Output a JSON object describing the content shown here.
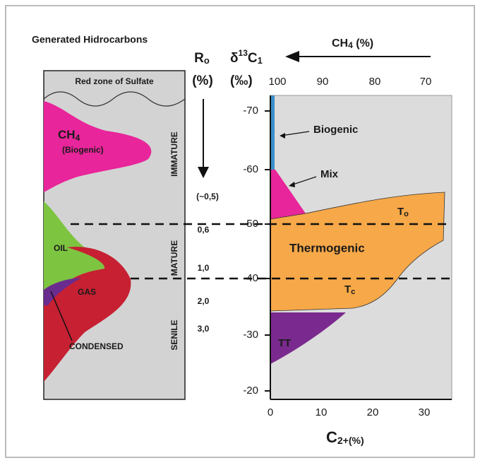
{
  "left_panel": {
    "title": "Generated Hidrocarbons",
    "top_zone": "Red zone of Sulfate",
    "ch4": {
      "formula": "CH",
      "subscript": "4"
    },
    "biogenic": "(Biogenic)",
    "oil": "OIL",
    "gas": "GAS",
    "condensed": "CONDENSED",
    "stages": [
      "IMMATURE",
      "MATURE",
      "SENILE"
    ]
  },
  "ro_scale": {
    "symbol": "R",
    "subscript": "o",
    "unit": "(%)",
    "labels": [
      "(~0,5)",
      "0,6",
      "1,0",
      "2,0",
      "3,0"
    ]
  },
  "delta_axis": {
    "symbol": "δ",
    "superscript": "13",
    "element": "C",
    "subscript": "1",
    "unit": "(‰)",
    "labels": [
      "-70",
      "-60",
      "-50",
      "-40",
      "-30",
      "-20"
    ]
  },
  "ch4_axis": {
    "formula": "CH",
    "subscript": "4",
    "unit": " (%)",
    "labels": [
      "100",
      "90",
      "80",
      "70"
    ]
  },
  "c2_axis": {
    "element": "C",
    "subscript": "2+(%)",
    "labels": [
      "0",
      "10",
      "20",
      "30"
    ]
  },
  "zones": {
    "biogenic": "Biogenic",
    "mix": "Mix",
    "thermogenic": "Thermogenic",
    "to": {
      "letter": "T",
      "subscript": "o"
    },
    "tc": {
      "letter": "T",
      "subscript": "c"
    },
    "tt": "TT"
  }
}
